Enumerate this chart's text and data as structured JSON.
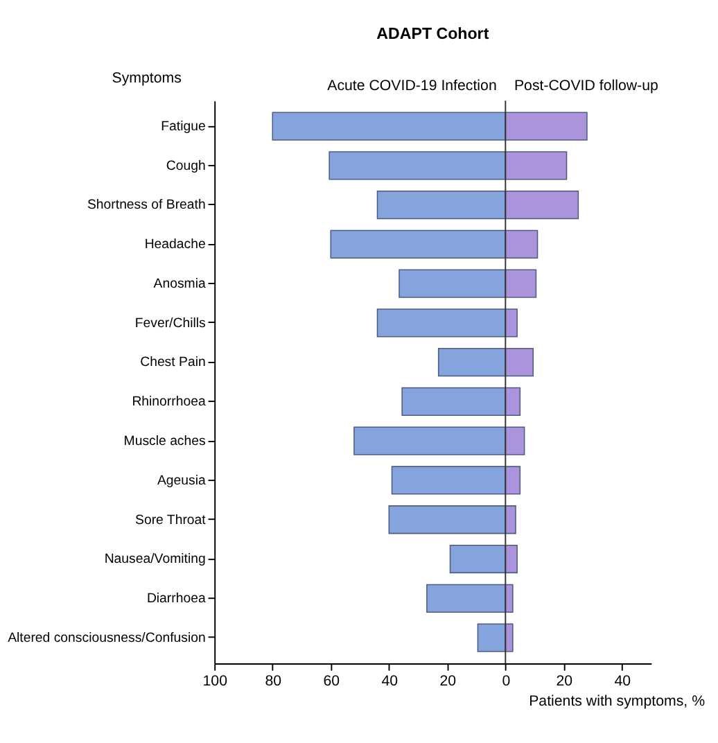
{
  "chart_data": {
    "type": "bar",
    "orientation": "horizontal",
    "title": "ADAPT Cohort",
    "ylabel": "Symptoms",
    "xlabel": "Patients with symptoms, %",
    "categories": [
      "Fatigue",
      "Cough",
      "Shortness of Breath",
      "Headache",
      "Anosmia",
      "Fever/Chills",
      "Chest Pain",
      "Rhinorrhoea",
      "Muscle aches",
      "Ageusia",
      "Sore Throat",
      "Nausea/Vomiting",
      "Diarrhoea",
      "Altered consciousness/Confusion"
    ],
    "series": [
      {
        "name": "Acute COVID-19 Infection",
        "color": "#7f9fdb",
        "values": [
          -80,
          -60.5,
          -44,
          -60,
          -36.5,
          -44,
          -23,
          -35.5,
          -52,
          -39,
          -40,
          -19,
          -27,
          -9.5
        ]
      },
      {
        "name": "Post-COVID follow-up",
        "color": "#a88fdc",
        "values": [
          28,
          21,
          25,
          11,
          10.5,
          4,
          9.5,
          5,
          6.5,
          5,
          3.5,
          4,
          2.5,
          2.5
        ]
      }
    ],
    "xlim": [
      -100,
      50
    ],
    "xticks": [
      {
        "value": -100,
        "label": "100"
      },
      {
        "value": -80,
        "label": "80"
      },
      {
        "value": -60,
        "label": "60"
      },
      {
        "value": -40,
        "label": "40"
      },
      {
        "value": -20,
        "label": "20"
      },
      0,
      20,
      40
    ],
    "ref_lines": [
      {
        "axis": "x",
        "value": 0,
        "color": "#333333"
      }
    ],
    "grid": false
  }
}
